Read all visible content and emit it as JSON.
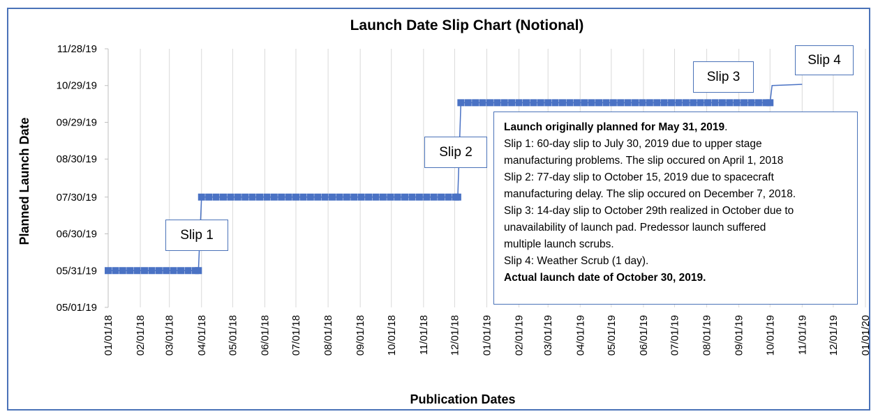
{
  "chart_data": {
    "type": "line",
    "title": "Launch Date Slip Chart (Notional)",
    "xlabel": "Publication Dates",
    "ylabel": "Planned Launch Date",
    "x_tick_labels": [
      "01/01/18",
      "02/01/18",
      "03/01/18",
      "04/01/18",
      "05/01/18",
      "06/01/18",
      "07/01/18",
      "08/01/18",
      "09/01/18",
      "10/01/18",
      "11/01/18",
      "12/01/18",
      "01/01/19",
      "02/01/19",
      "03/01/19",
      "04/01/19",
      "05/01/19",
      "06/01/19",
      "07/01/19",
      "08/01/19",
      "09/01/19",
      "10/01/19",
      "11/01/19",
      "12/01/19",
      "01/01/20"
    ],
    "y_tick_labels": [
      "05/01/19",
      "05/31/19",
      "06/30/19",
      "07/30/19",
      "08/30/19",
      "09/29/19",
      "10/29/19",
      "11/28/19"
    ],
    "xlim": [
      "2018-01-01",
      "2020-01-01"
    ],
    "ylim": [
      "2019-05-01",
      "2019-11-28"
    ],
    "grid": "vertical",
    "series": [
      {
        "color": "#4a72c4",
        "points": [
          [
            "2018-01-01",
            "2019-05-31"
          ],
          [
            "2018-03-29",
            "2019-05-31"
          ],
          [
            "2018-04-01",
            "2019-07-30"
          ],
          [
            "2018-12-04",
            "2019-07-30"
          ],
          [
            "2018-12-07",
            "2019-10-15"
          ],
          [
            "2019-10-01",
            "2019-10-15"
          ],
          [
            "2019-10-03",
            "2019-10-29"
          ],
          [
            "2019-11-01",
            "2019-10-30"
          ]
        ]
      }
    ],
    "annotations": [
      "Slip 1",
      "Slip 2",
      "Slip 3",
      "Slip 4"
    ]
  },
  "callouts": {
    "slip1": "Slip 1",
    "slip2": "Slip 2",
    "slip3": "Slip 3",
    "slip4": "Slip 4"
  },
  "note": {
    "line1_bold": "Launch originally planned for May 31, 2019",
    "line1_rest": ".",
    "line2": "Slip 1: 60-day slip to July 30, 2019  due to upper stage",
    "line3": "manufacturing problems. The slip occured on April 1, 2018",
    "line4": "Slip 2: 77-day slip to October 15, 2019  due to spacecraft",
    "line5": "manufacturing delay. The slip occured on December 7, 2018.",
    "line6": "Slip 3: 14-day slip to October 29th realized in October due to",
    "line7": "unavailability of launch pad.   Predessor launch suffered",
    "line8": "multiple launch scrubs.",
    "line9": "Slip 4:  Weather Scrub (1 day).",
    "line10": "Actual launch date of October 30, 2019."
  }
}
